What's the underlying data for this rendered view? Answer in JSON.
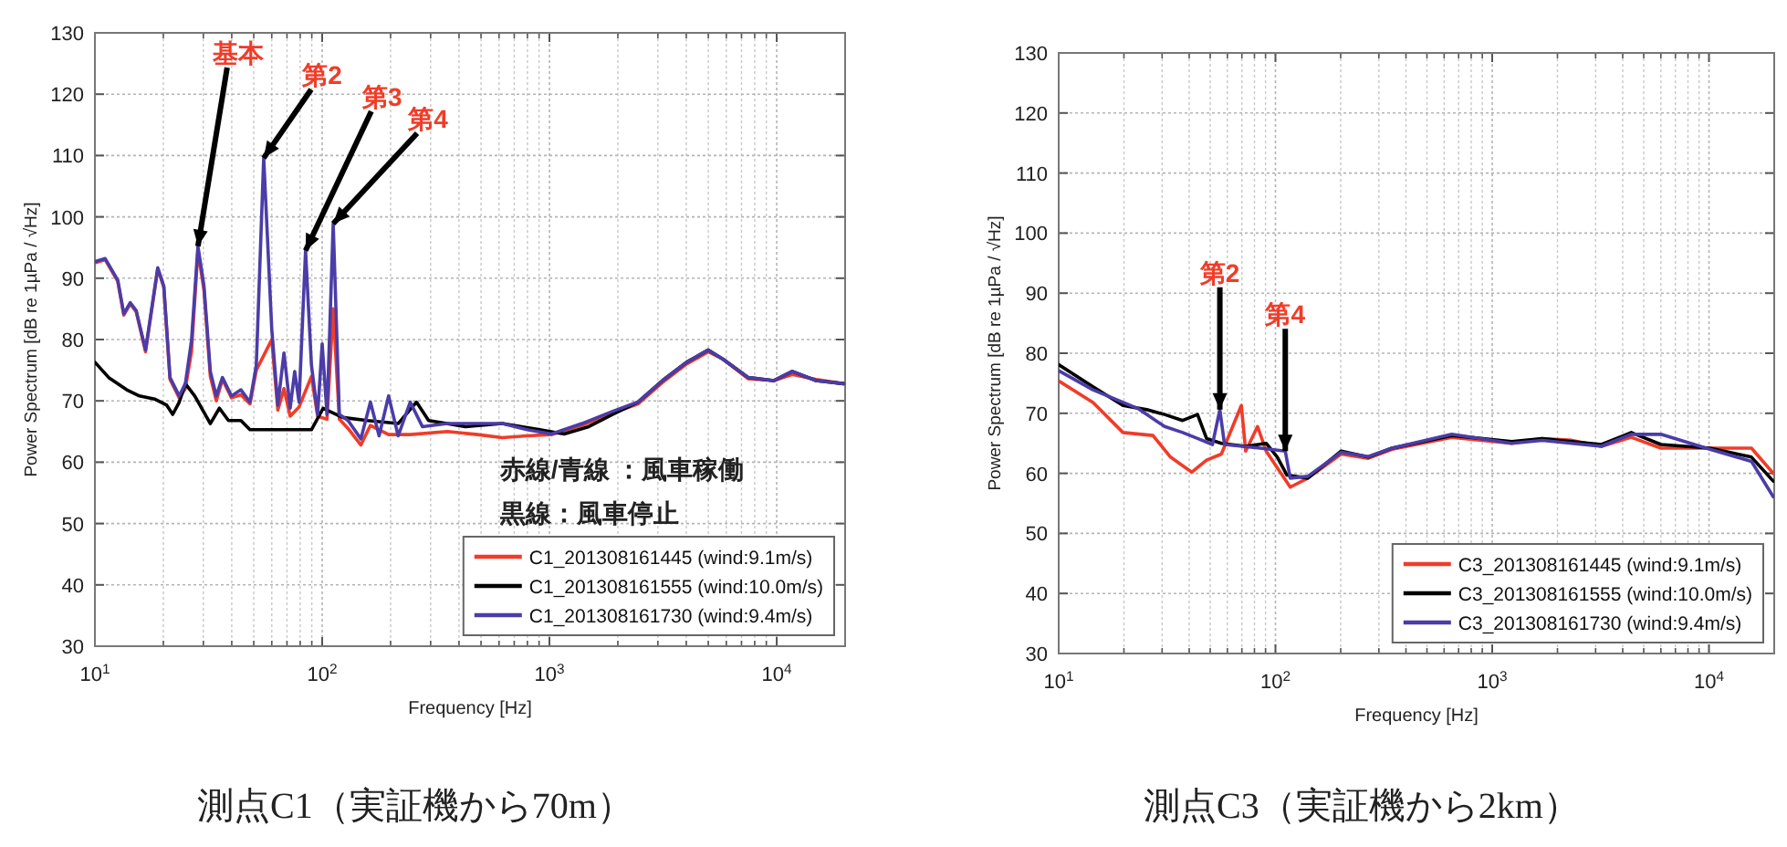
{
  "chart_data": [
    {
      "type": "line",
      "xlabel": "Frequency [Hz]",
      "ylabel": "Power Spectrum [dB re 1µPa / √Hz]",
      "log": "x",
      "grid": true,
      "legend": "bottom right",
      "xlim": [
        10,
        20000
      ],
      "ylim": [
        30,
        130
      ],
      "xticks": [
        {
          "value": 10,
          "label": "10$^{1}$"
        },
        {
          "value": 100,
          "label": "10$^{2}$"
        },
        {
          "value": 1000,
          "label": "10$^{3}$"
        },
        {
          "value": 10000,
          "label": "10$^{4}$"
        }
      ],
      "yticks": [
        30,
        40,
        50,
        60,
        70,
        80,
        90,
        100,
        110,
        120,
        130
      ],
      "series": [
        {
          "name": "C1_201308161445 (wind:9.1m/s)",
          "color": "#f03c28",
          "x": [
            10,
            11.1,
            12.6,
            13.4,
            14.3,
            15.2,
            16.7,
            18.9,
            20.1,
            21.4,
            23.5,
            25,
            26.6,
            28.4,
            30.2,
            32.2,
            34.2,
            36.4,
            39.9,
            43.9,
            48.1,
            51.3,
            60,
            63.8,
            67.9,
            72.3,
            79.1,
            89.7,
            95.5,
            105,
            111.8,
            119,
            130,
            148,
            163,
            196,
            244,
            356,
            483,
            620,
            797,
            1020,
            1390,
            1900,
            2450,
            3140,
            4010,
            5000,
            5800,
            7500,
            9700,
            11700,
            14900,
            19700
          ],
          "values": [
            92.5,
            93,
            89.5,
            84,
            85.8,
            84.5,
            78,
            91.5,
            88.5,
            73.5,
            70.5,
            72,
            78,
            94.5,
            88,
            74,
            70,
            73.5,
            70.5,
            71,
            69.5,
            75,
            80,
            68.5,
            72,
            67.5,
            69,
            74,
            67.5,
            67,
            85,
            67,
            65.5,
            62.8,
            66,
            64.5,
            64.5,
            65,
            64.5,
            64,
            64.3,
            64.5,
            66,
            68,
            69.5,
            73,
            76,
            78,
            76.8,
            73.6,
            73.3,
            74.3,
            73.5,
            72.8
          ]
        },
        {
          "name": "C1_201308161555 (wind:10.0m/s)",
          "color": "#000000",
          "x": [
            10,
            11.5,
            13.8,
            15.7,
            18.3,
            20.7,
            22,
            23.5,
            25,
            27.5,
            32.2,
            35.3,
            38.7,
            43.9,
            48.1,
            58,
            74.5,
            89.7,
            101,
            123,
            158,
            216,
            260,
            294,
            427,
            620,
            906,
            1160,
            1490,
            1900,
            2450,
            3140,
            4010,
            5000,
            5800,
            7500,
            9700,
            11700,
            14900,
            19700
          ],
          "values": [
            76.3,
            73.8,
            71.8,
            70.8,
            70.3,
            69.3,
            67.8,
            69.8,
            72.8,
            70.8,
            66.3,
            68.8,
            66.8,
            66.8,
            65.3,
            65.3,
            65.3,
            65.3,
            68.8,
            67.3,
            66.8,
            66.3,
            69.8,
            66.8,
            65.8,
            66.3,
            65.3,
            64.6,
            65.8,
            67.8,
            69.8,
            73.3,
            76.3,
            78.3,
            76.8,
            73.8,
            73.3,
            74.8,
            73.3,
            72.8
          ]
        },
        {
          "name": "C1_201308161730 (wind:9.4m/s)",
          "color": "#4b3ca8",
          "x": [
            10,
            11.1,
            12.6,
            13.4,
            14.3,
            15.2,
            16.7,
            18.9,
            20.1,
            21.4,
            23.5,
            25,
            26.6,
            28.4,
            30.2,
            32.2,
            34.2,
            36.4,
            39.9,
            43.9,
            48.1,
            51.3,
            55.3,
            60,
            63.8,
            67.9,
            72.3,
            75.7,
            79.1,
            84.5,
            89.7,
            95.5,
            100,
            105,
            111.8,
            119,
            130,
            148,
            163,
            178,
            196,
            216,
            244,
            276,
            356,
            483,
            620,
            797,
            1020,
            1390,
            1900,
            2450,
            3140,
            4010,
            5000,
            5800,
            7500,
            9700,
            11700,
            14900,
            19700
          ],
          "values": [
            92.7,
            93.2,
            89.7,
            84.2,
            86,
            84.7,
            78.3,
            91.7,
            88.7,
            73.8,
            70.8,
            72.8,
            79.8,
            95.2,
            88.7,
            74.8,
            70.8,
            73.8,
            70.8,
            71.8,
            69.8,
            75.8,
            109.6,
            81.7,
            69.3,
            77.8,
            68.8,
            74.8,
            69.8,
            94.5,
            75.8,
            67.8,
            79.3,
            67.8,
            98.9,
            67.8,
            66.8,
            63.8,
            69.8,
            64.3,
            70.8,
            64.3,
            69.8,
            65.8,
            66.3,
            66.3,
            66.3,
            65.3,
            64.6,
            66.3,
            68.3,
            69.8,
            73.3,
            76.3,
            78.3,
            76.8,
            73.8,
            73.3,
            74.8,
            73.3,
            72.8
          ]
        }
      ],
      "annotations": [
        {
          "text": "基本",
          "x": 28.4,
          "y": 95.2
        },
        {
          "text": "第2",
          "x": 55.3,
          "y": 109.6
        },
        {
          "text": "第3",
          "x": 84.5,
          "y": 94.5
        },
        {
          "text": "第4",
          "x": 111.8,
          "y": 98.9
        },
        "赤線/青線 ：風車稼働",
        "黒線：風車停止",
        "測点C1（実証機から70m）"
      ]
    },
    {
      "type": "line",
      "xlabel": "Frequency [Hz]",
      "ylabel": "Power Spectrum [dB re 1µPa / √Hz]",
      "log": "x",
      "grid": true,
      "legend": "bottom right",
      "xlim": [
        10,
        20000
      ],
      "ylim": [
        30,
        130
      ],
      "xticks": [
        {
          "value": 10,
          "label": "10$^{1}$"
        },
        {
          "value": 100,
          "label": "10$^{2}$"
        },
        {
          "value": 1000,
          "label": "10$^{3}$"
        },
        {
          "value": 10000,
          "label": "10$^{4}$"
        }
      ],
      "yticks": [
        30,
        40,
        50,
        60,
        70,
        80,
        90,
        100,
        110,
        120,
        130
      ],
      "series": [
        {
          "name": "C3_201308161445 (wind:9.1m/s)",
          "color": "#f03c28",
          "x": [
            10,
            14.4,
            19.8,
            27.2,
            32.8,
            41.1,
            48.1,
            56.3,
            69.6,
            72.9,
            82.7,
            90.6,
            117,
            141,
            201,
            268,
            345,
            651,
            1230,
            1700,
            2330,
            3190,
            4380,
            6000,
            10100,
            15700,
            19800
          ],
          "values": [
            75.4,
            71.8,
            66.8,
            66.3,
            62.7,
            60.2,
            62.2,
            63.2,
            71.3,
            63.7,
            67.8,
            63.7,
            57.7,
            59.2,
            63.2,
            62.5,
            64,
            66,
            65,
            65.8,
            65.5,
            64.5,
            66,
            64.2,
            64.2,
            64.2,
            60
          ]
        },
        {
          "name": "C3_201308161555 (wind:10.0m/s)",
          "color": "#000000",
          "x": [
            10,
            14.4,
            19.8,
            25.5,
            30.8,
            37.3,
            43.7,
            48.1,
            56.3,
            72.9,
            90.6,
            102,
            113,
            141,
            201,
            268,
            345,
            651,
            1230,
            1700,
            2330,
            3190,
            4380,
            6000,
            10100,
            15700,
            19800
          ],
          "values": [
            78.1,
            74.4,
            71.3,
            70.6,
            69.8,
            68.8,
            69.8,
            65.8,
            65,
            64.5,
            65,
            62.7,
            59.7,
            59.2,
            63.7,
            62.7,
            64.2,
            66.3,
            65.3,
            65.8,
            65.3,
            64.8,
            66.8,
            64.8,
            64.2,
            62.7,
            58.7
          ]
        },
        {
          "name": "C3_201308161730 (wind:9.4m/s)",
          "color": "#4b3ca8",
          "x": [
            10,
            14.4,
            23.2,
            30.8,
            37.3,
            43.7,
            51.2,
            55.4,
            58.2,
            85,
            111,
            117,
            141,
            201,
            268,
            345,
            651,
            1230,
            1700,
            2330,
            3190,
            4380,
            6000,
            10100,
            15700,
            19800
          ],
          "values": [
            77.1,
            73.9,
            70.8,
            67.8,
            66.8,
            65.8,
            64.8,
            70.6,
            64.8,
            64.2,
            63.7,
            59.2,
            59.5,
            63.5,
            62.8,
            64.2,
            66.5,
            65,
            65.5,
            65,
            64.5,
            66.5,
            66.5,
            64,
            62,
            56.1
          ]
        }
      ],
      "annotations": [
        {
          "text": "第2",
          "x": 55.4,
          "y": 70.6
        },
        {
          "text": "第4",
          "x": 111,
          "y": 63.7
        },
        "測点C3（実証機から2km）"
      ]
    }
  ]
}
